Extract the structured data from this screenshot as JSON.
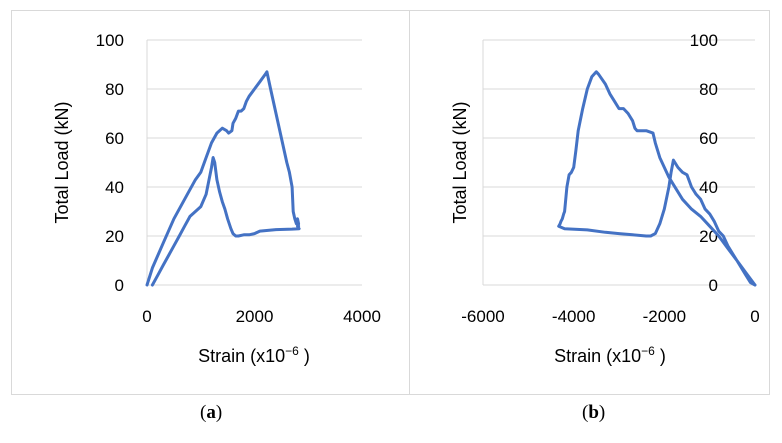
{
  "figure": {
    "panel_labels": [
      {
        "open": "(",
        "letter": "a",
        "close": ")"
      },
      {
        "open": "(",
        "letter": "b",
        "close": ")"
      }
    ]
  },
  "chart_data": [
    {
      "type": "line",
      "title": "",
      "xlabel": "Strain (x10",
      "xlabel_sup": "−6",
      "xlabel_end": " )",
      "ylabel": "Total Load (kN)",
      "xlim": [
        0,
        4000
      ],
      "ylim": [
        0,
        100
      ],
      "xticks": [
        0,
        2000,
        4000
      ],
      "yticks": [
        0,
        20,
        40,
        60,
        80,
        100
      ],
      "grid": "horizontal",
      "series_color": "#4472c4",
      "series": [
        {
          "x": [
            0,
            100,
            300,
            500,
            700,
            900,
            1000,
            1100,
            1200,
            1300,
            1400,
            1480,
            1520,
            1580,
            1600,
            1650,
            1700,
            1750,
            1800,
            1850,
            1900,
            2000,
            2100,
            2200,
            2230,
            2300,
            2400,
            2500,
            2600,
            2650,
            2700,
            2720,
            2750,
            2780,
            2800,
            2820,
            2800,
            2820,
            2800,
            2830,
            2700,
            2400,
            2100,
            2000,
            1900,
            1800,
            1700,
            1650,
            1600,
            1560,
            1500,
            1450,
            1400,
            1350,
            1300,
            1260,
            1230,
            1200,
            1100,
            1000,
            900,
            800,
            700,
            600,
            500,
            400,
            300,
            200,
            100
          ],
          "y": [
            0,
            7,
            17,
            27,
            35,
            43,
            46,
            52,
            58,
            62,
            64,
            63,
            62,
            63,
            66,
            68,
            71,
            71,
            72,
            75,
            77,
            80,
            83,
            86,
            87,
            80,
            70,
            60,
            50,
            46,
            40,
            30,
            27,
            25,
            27,
            25,
            23,
            24,
            24,
            23,
            22.8,
            22.6,
            22,
            21,
            20.5,
            20.5,
            20,
            20,
            21,
            23,
            27,
            31,
            34,
            38,
            43,
            50,
            52,
            48,
            37,
            32,
            30,
            28,
            24,
            20,
            16,
            12,
            8,
            4,
            0
          ]
        }
      ]
    },
    {
      "type": "line",
      "title": "",
      "xlabel": "Strain (x10",
      "xlabel_sup": "−6",
      "xlabel_end": " )",
      "ylabel": "Total Load (kN)",
      "xlim": [
        -6000,
        0
      ],
      "ylim": [
        0,
        100
      ],
      "xticks": [
        -6000,
        -4000,
        -2000,
        0
      ],
      "yticks": [
        0,
        20,
        40,
        60,
        80,
        100
      ],
      "grid": "horizontal",
      "y_axis_position": "right",
      "series_color": "#4472c4",
      "series": [
        {
          "x": [
            0,
            -200,
            -400,
            -600,
            -800,
            -1000,
            -1200,
            -1400,
            -1600,
            -1800,
            -1900,
            -2100,
            -2200,
            -2250,
            -2400,
            -2600,
            -2650,
            -2700,
            -2800,
            -2900,
            -3000,
            -3100,
            -3200,
            -3300,
            -3450,
            -3500,
            -3600,
            -3700,
            -3800,
            -3900,
            -3950,
            -4000,
            -4050,
            -4100,
            -4150,
            -4200,
            -4220,
            -4250,
            -4280,
            -4300,
            -4330,
            -4200,
            -3700,
            -3300,
            -3000,
            -2700,
            -2400,
            -2300,
            -2200,
            -2100,
            -2000,
            -1900,
            -1850,
            -1800,
            -1700,
            -1600,
            -1500,
            -1400,
            -1300,
            -1200,
            -1100,
            -1000,
            -900,
            -800,
            -700,
            -600,
            -500,
            -400,
            -300,
            -200,
            -100,
            0
          ],
          "y": [
            0,
            5,
            10,
            15,
            20,
            24,
            28,
            31,
            35,
            41,
            44,
            52,
            58,
            62,
            63,
            63,
            64,
            67,
            70,
            72,
            72,
            75,
            78,
            82,
            86,
            87,
            85,
            80,
            72,
            63,
            55,
            48,
            46,
            45,
            40,
            30,
            29,
            27,
            26,
            25,
            24,
            23,
            22.5,
            21.5,
            21,
            20.5,
            20,
            20,
            21,
            25,
            31,
            40,
            46,
            51,
            48,
            46,
            45,
            40,
            37,
            35,
            31,
            29,
            26,
            22,
            20,
            16,
            13,
            10,
            7,
            4,
            1,
            0
          ]
        }
      ]
    }
  ]
}
